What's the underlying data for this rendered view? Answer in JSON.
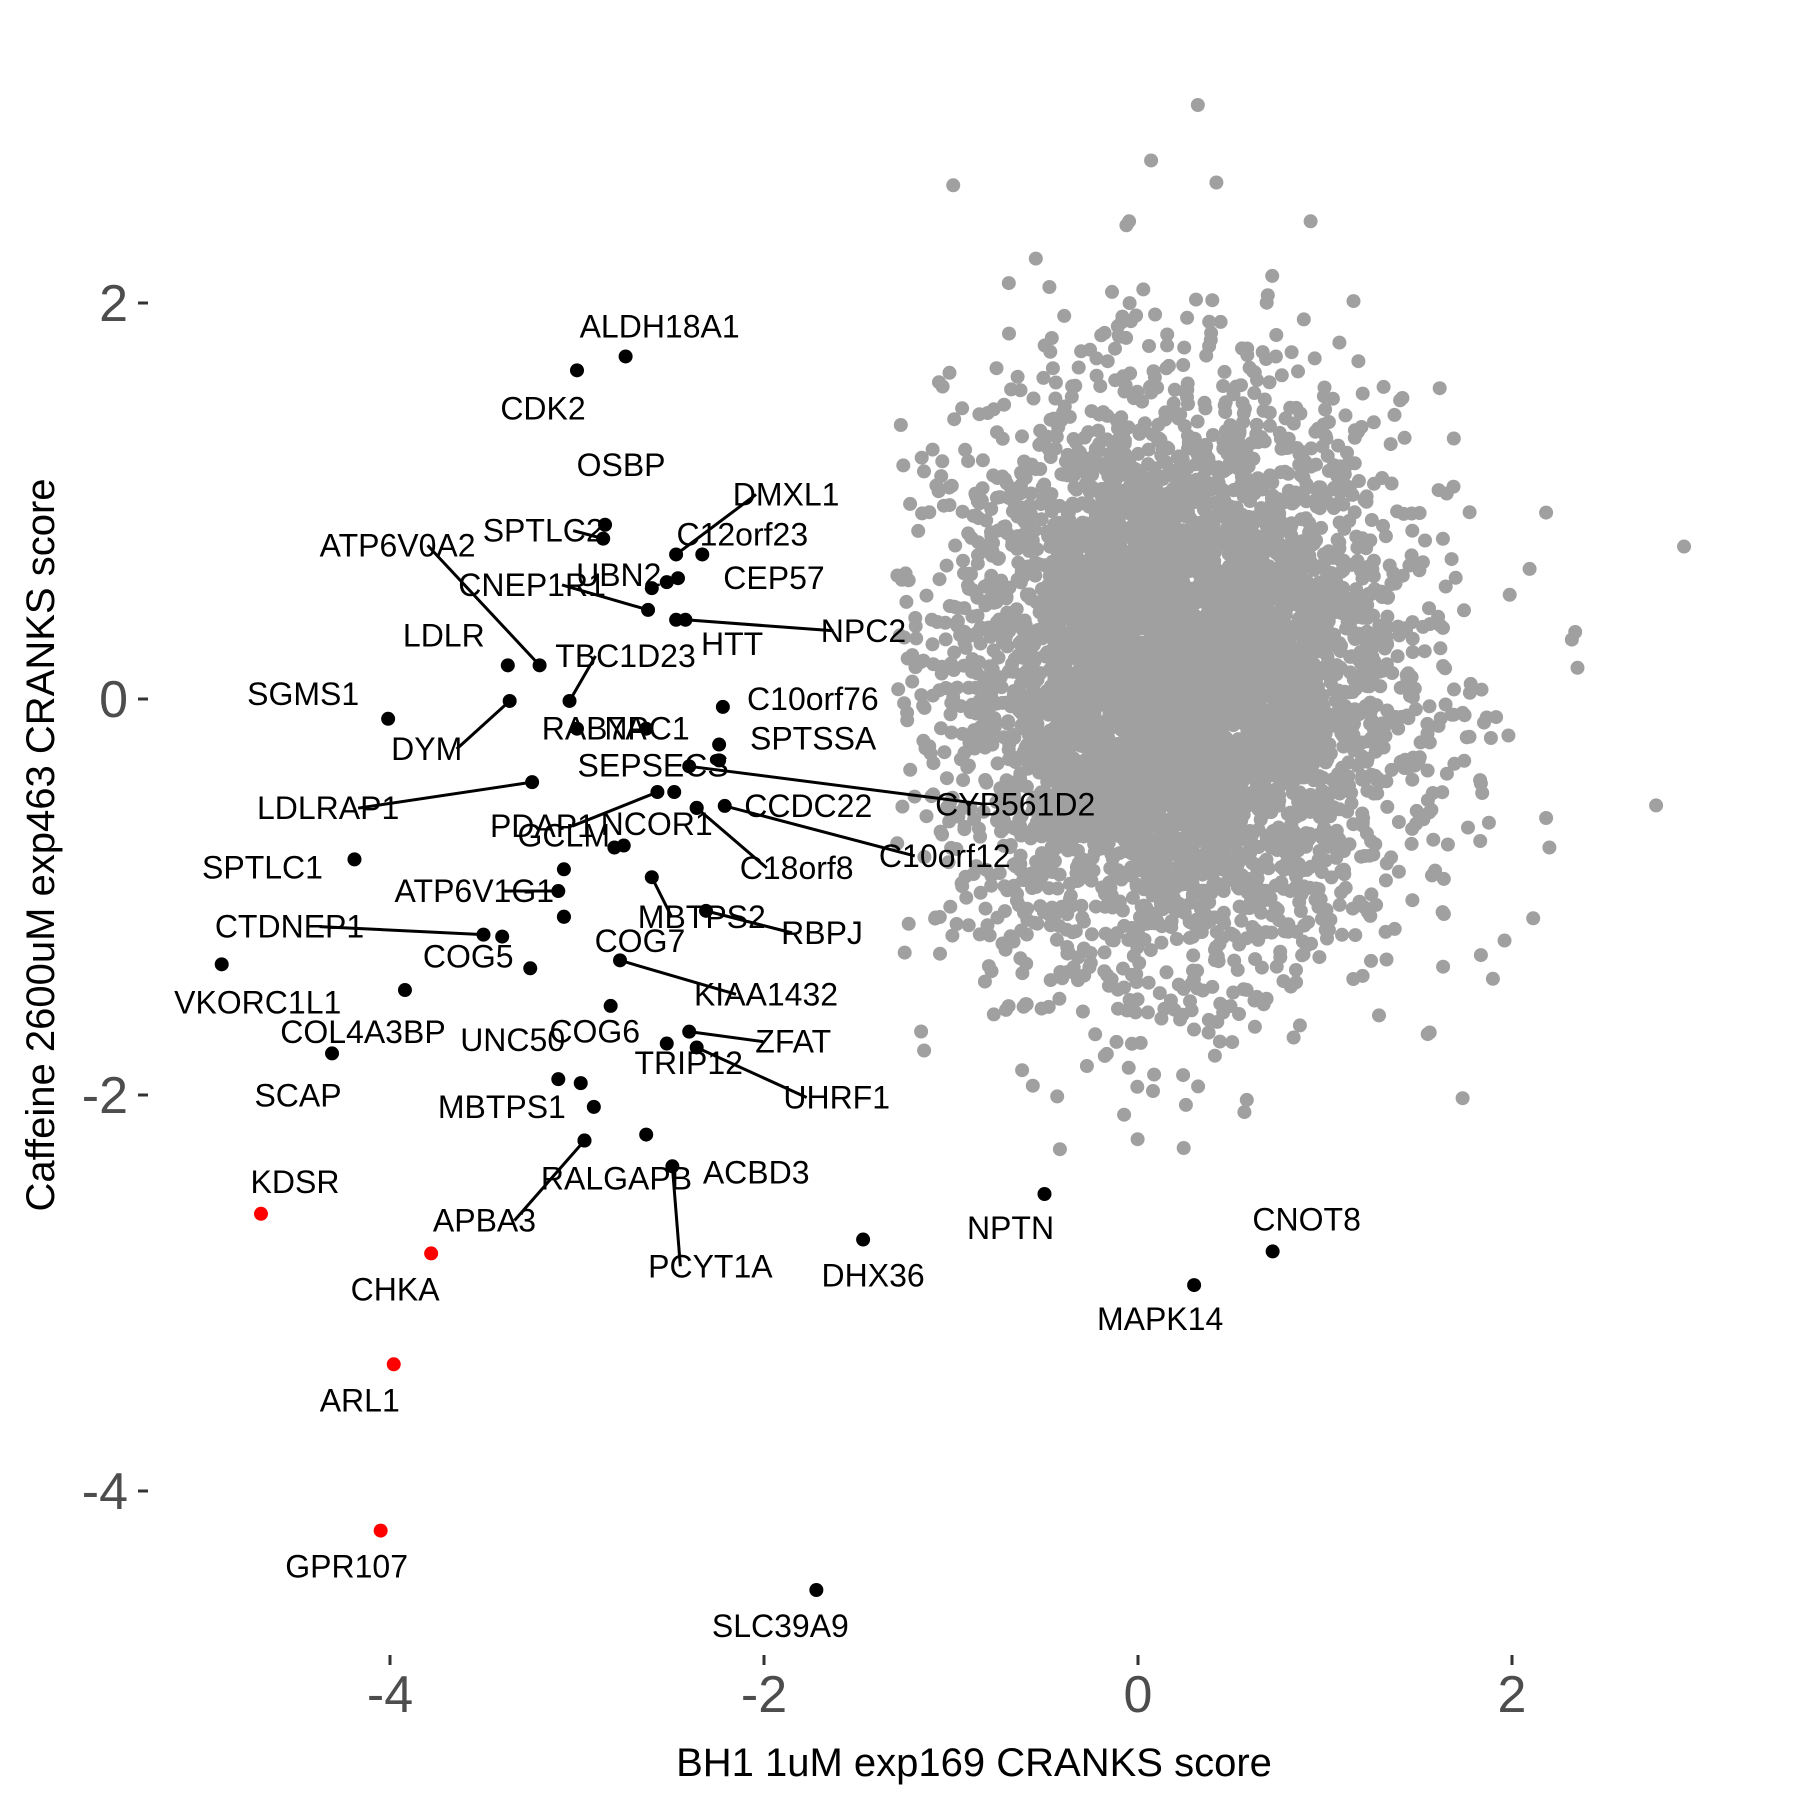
{
  "chart_data": {
    "type": "scatter",
    "xlabel": "BH1 1uM exp169 CRANKS score",
    "ylabel": "Caffeine 2600uM exp463 CRANKS score",
    "xlim": [
      -5.1,
      3.4
    ],
    "ylim": [
      -4.95,
      3.1
    ],
    "x_ticks": [
      -4,
      -2,
      0,
      2
    ],
    "y_ticks": [
      -4,
      -2,
      0,
      2
    ],
    "x_tick_labels": [
      "-4",
      "-2",
      "0",
      "2"
    ],
    "y_tick_labels": [
      "-4",
      "-2",
      "0",
      "2"
    ],
    "grid": false,
    "legend": "none",
    "colors": {
      "background_points": "#a0a0a0",
      "hit_points": "#000000",
      "highlight_points": "#ff0000",
      "leader_lines": "#000000"
    },
    "background_cloud": {
      "description": "Several thousand genes plotted as grey points centred near (0.2, 0.1)",
      "center": [
        0.2,
        0.1
      ],
      "spread_sd": [
        0.6,
        0.7
      ],
      "count": 5500
    },
    "labeled_points": [
      {
        "gene": "ALDH18A1",
        "x": -2.74,
        "y": 1.73,
        "color": "black"
      },
      {
        "gene": "CDK2",
        "x": -3.0,
        "y": 1.66,
        "color": "black"
      },
      {
        "gene": "OSBP",
        "x": -2.85,
        "y": 0.88,
        "color": "black"
      },
      {
        "gene": "SPTLC2",
        "x": -2.86,
        "y": 0.81,
        "color": "black"
      },
      {
        "gene": "DMXL1",
        "x": -2.47,
        "y": 0.73,
        "color": "black"
      },
      {
        "gene": "C12orf23",
        "x": -2.33,
        "y": 0.73,
        "color": "black"
      },
      {
        "gene": "ATP6V0A2",
        "x": -3.2,
        "y": 0.17,
        "color": "black"
      },
      {
        "gene": "CNEP1R1",
        "x": -2.62,
        "y": 0.45,
        "color": "black"
      },
      {
        "gene": "UBN2",
        "x": -2.52,
        "y": 0.59,
        "color": "black"
      },
      {
        "gene": "CEP57",
        "x": -2.46,
        "y": 0.61,
        "color": "black"
      },
      {
        "gene": "HTT",
        "x": -2.47,
        "y": 0.4,
        "color": "black"
      },
      {
        "gene": "NPC2",
        "x": -2.42,
        "y": 0.4,
        "color": "black"
      },
      {
        "gene": "LDLR",
        "x": -3.37,
        "y": 0.17,
        "color": "black"
      },
      {
        "gene": "TBC1D23",
        "x": -3.04,
        "y": -0.01,
        "color": "black"
      },
      {
        "gene": "SGMS1",
        "x": -4.01,
        "y": -0.1,
        "color": "black"
      },
      {
        "gene": "DYM",
        "x": -3.36,
        "y": -0.01,
        "color": "black"
      },
      {
        "gene": "NPC1",
        "x": -3.0,
        "y": -0.15,
        "color": "black"
      },
      {
        "gene": "C10orf76",
        "x": -2.22,
        "y": -0.04,
        "color": "black"
      },
      {
        "gene": "RAB7A",
        "x": -2.63,
        "y": -0.15,
        "color": "black"
      },
      {
        "gene": "SPTSSA",
        "x": -2.24,
        "y": -0.23,
        "color": "black"
      },
      {
        "gene": "SEPSECS",
        "x": -2.24,
        "y": -0.31,
        "color": "black"
      },
      {
        "gene": "LDLRAP1",
        "x": -3.24,
        "y": -0.42,
        "color": "black"
      },
      {
        "gene": "CYB561D2",
        "x": -2.4,
        "y": -0.34,
        "color": "black"
      },
      {
        "gene": "PDAP1",
        "x": -2.57,
        "y": -0.47,
        "color": "black"
      },
      {
        "gene": "CCDC22",
        "x": -2.48,
        "y": -0.47,
        "color": "black"
      },
      {
        "gene": "C10orf12",
        "x": -2.21,
        "y": -0.54,
        "color": "black"
      },
      {
        "gene": "NCOR1",
        "x": -2.36,
        "y": -0.55,
        "color": "black"
      },
      {
        "gene": "C18orf8",
        "x": -2.36,
        "y": -0.55,
        "color": "black"
      },
      {
        "gene": "SPTLC1",
        "x": -4.19,
        "y": -0.81,
        "color": "black"
      },
      {
        "gene": "GCLM",
        "x": -2.75,
        "y": -0.74,
        "color": "black"
      },
      {
        "gene": "ATP6V1G1",
        "x": -3.1,
        "y": -0.97,
        "color": "black"
      },
      {
        "gene": "CTDNEP1",
        "x": -3.5,
        "y": -1.19,
        "color": "black"
      },
      {
        "gene": "COG7",
        "x": -3.07,
        "y": -1.1,
        "color": "black"
      },
      {
        "gene": "MBTPS2",
        "x": -2.6,
        "y": -0.9,
        "color": "black"
      },
      {
        "gene": "RBPJ",
        "x": -2.31,
        "y": -1.07,
        "color": "black"
      },
      {
        "gene": "VKORC1L1",
        "x": -4.9,
        "y": -1.34,
        "color": "black"
      },
      {
        "gene": "COG5",
        "x": -3.25,
        "y": -1.36,
        "color": "black"
      },
      {
        "gene": "KIAA1432",
        "x": -2.77,
        "y": -1.32,
        "color": "black"
      },
      {
        "gene": "COL4A3BP",
        "x": -3.92,
        "y": -1.47,
        "color": "black"
      },
      {
        "gene": "UNC50",
        "x": -2.82,
        "y": -1.55,
        "color": "black"
      },
      {
        "gene": "SCAP",
        "x": -4.31,
        "y": -1.79,
        "color": "black"
      },
      {
        "gene": "COG6",
        "x": -2.52,
        "y": -1.74,
        "color": "black"
      },
      {
        "gene": "ZFAT",
        "x": -2.4,
        "y": -1.68,
        "color": "black"
      },
      {
        "gene": "UHRF1",
        "x": -2.36,
        "y": -1.76,
        "color": "black"
      },
      {
        "gene": "MBTPS1",
        "x": -2.91,
        "y": -2.06,
        "color": "black"
      },
      {
        "gene": "TRIP12",
        "x": -2.98,
        "y": -1.94,
        "color": "black"
      },
      {
        "gene": "RALGAPB",
        "x": -2.96,
        "y": -2.23,
        "color": "black"
      },
      {
        "gene": "ACBD3",
        "x": -2.63,
        "y": -2.2,
        "color": "black"
      },
      {
        "gene": "APBA3",
        "x": -2.96,
        "y": -2.23,
        "color": "black"
      },
      {
        "gene": "PCYT1A",
        "x": -2.49,
        "y": -2.36,
        "color": "black"
      },
      {
        "gene": "KDSR",
        "x": -4.69,
        "y": -2.6,
        "color": "red"
      },
      {
        "gene": "CHKA",
        "x": -3.78,
        "y": -2.8,
        "color": "red"
      },
      {
        "gene": "DHX36",
        "x": -1.47,
        "y": -2.73,
        "color": "black"
      },
      {
        "gene": "NPTN",
        "x": -0.5,
        "y": -2.5,
        "color": "black"
      },
      {
        "gene": "CNOT8",
        "x": 0.72,
        "y": -2.79,
        "color": "black"
      },
      {
        "gene": "MAPK14",
        "x": 0.3,
        "y": -2.96,
        "color": "black"
      },
      {
        "gene": "ARL1",
        "x": -3.98,
        "y": -3.36,
        "color": "red"
      },
      {
        "gene": "GPR107",
        "x": -4.05,
        "y": -4.2,
        "color": "red"
      },
      {
        "gene": "SLC39A9",
        "x": -1.72,
        "y": -4.5,
        "color": "black"
      }
    ],
    "unlabeled_black_points": [
      {
        "x": -2.6,
        "y": 0.56
      },
      {
        "x": -2.8,
        "y": -0.75
      },
      {
        "x": -3.07,
        "y": -1.1
      },
      {
        "x": -3.4,
        "y": -1.2
      },
      {
        "x": -3.1,
        "y": -1.92
      },
      {
        "x": -3.07,
        "y": -0.86
      }
    ]
  }
}
